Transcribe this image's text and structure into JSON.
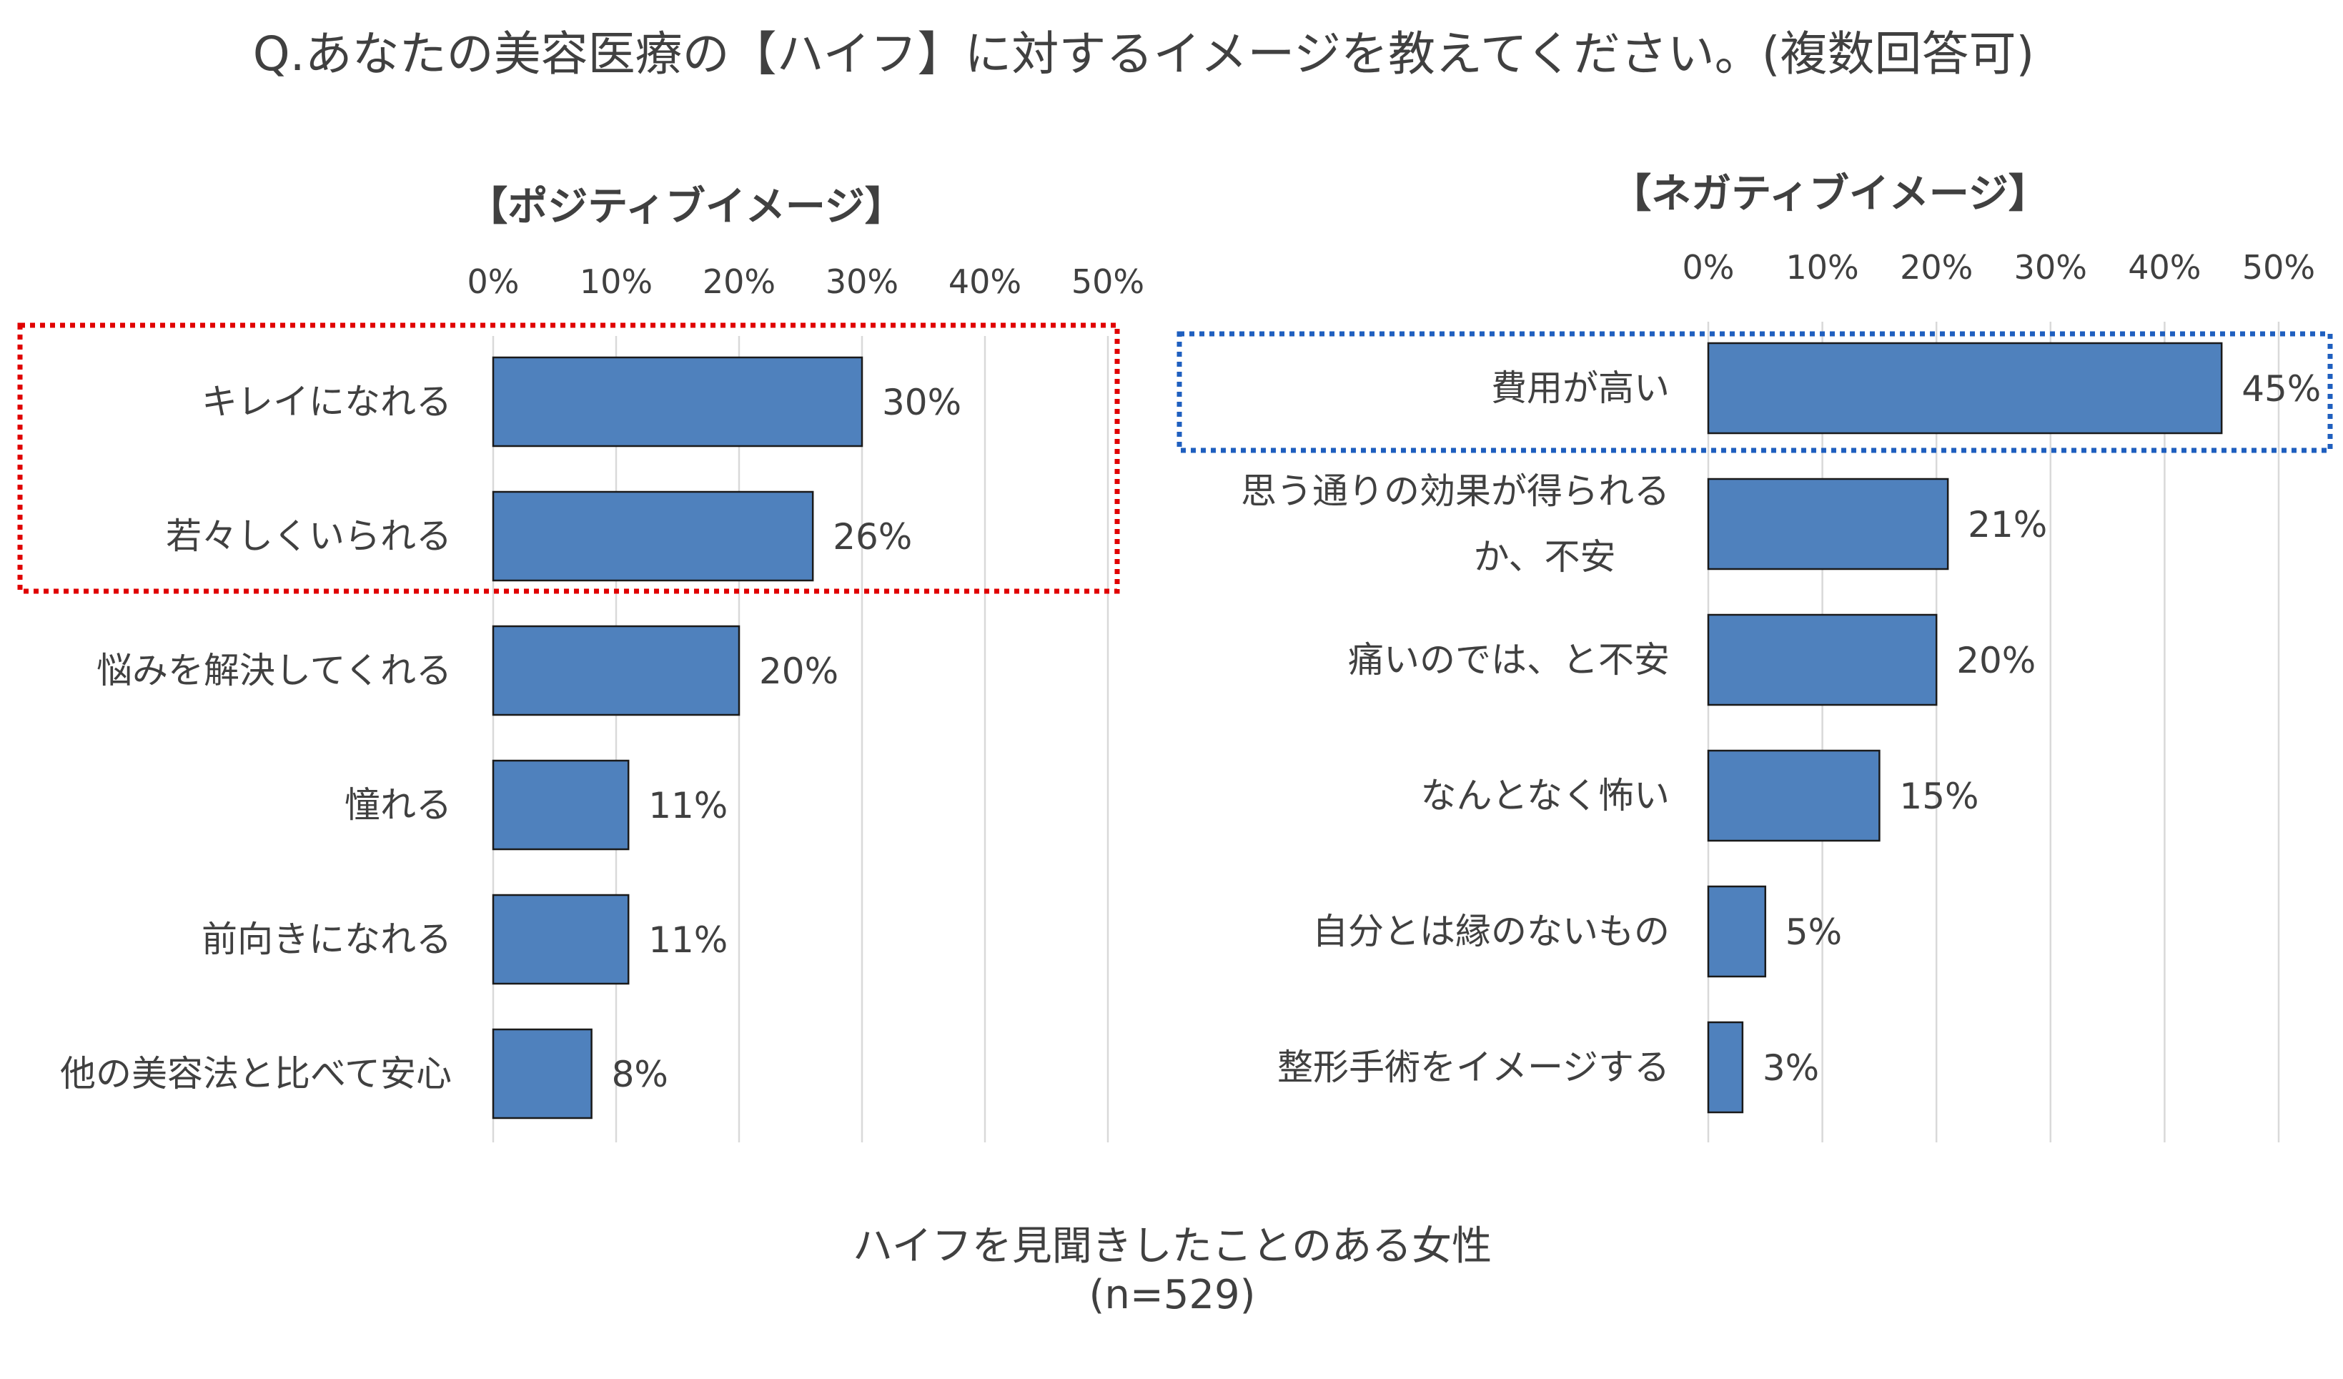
{
  "title": "Q.あなたの美容医療の【ハイフ】に対するイメージを教えてください。(複数回答可)",
  "footer": {
    "line1": "ハイフを見聞きしたことのある女性",
    "line2": "(n=529)"
  },
  "colors": {
    "bar": "#4f81bd",
    "positive_highlight": "#e00000",
    "negative_highlight": "#1f5fbf"
  },
  "chart_data": [
    {
      "type": "bar",
      "orientation": "horizontal",
      "title": "【ポジティブイメージ】",
      "categories": [
        "キレイになれる",
        "若々しくいられる",
        "悩みを解決してくれる",
        "憧れる",
        "前向きになれる",
        "他の美容法と比べて安心"
      ],
      "values": [
        30,
        26,
        20,
        11,
        11,
        8
      ],
      "value_labels": [
        "30%",
        "26%",
        "20%",
        "11%",
        "11%",
        "8%"
      ],
      "xticks": [
        "0%",
        "10%",
        "20%",
        "30%",
        "40%",
        "50%"
      ],
      "xlim": [
        0,
        50
      ],
      "axis_position": "top",
      "grid": true,
      "highlighted_categories": [
        "キレイになれる",
        "若々しくいられる"
      ],
      "highlight_style": "red dotted box"
    },
    {
      "type": "bar",
      "orientation": "horizontal",
      "title": "【ネガティブイメージ】",
      "categories": [
        "費用が高い",
        "思う通りの効果が得られるか、不安",
        "痛いのでは、と不安",
        "なんとなく怖い",
        "自分とは縁のないもの",
        "整形手術をイメージする"
      ],
      "category_lines": [
        [
          "費用が高い"
        ],
        [
          "思う通りの効果が得られる",
          "か、不安"
        ],
        [
          "痛いのでは、と不安"
        ],
        [
          "なんとなく怖い"
        ],
        [
          "自分とは縁のないもの"
        ],
        [
          "整形手術をイメージする"
        ]
      ],
      "values": [
        45,
        21,
        20,
        15,
        5,
        3
      ],
      "value_labels": [
        "45%",
        "21%",
        "20%",
        "15%",
        "5%",
        "3%"
      ],
      "xticks": [
        "0%",
        "10%",
        "20%",
        "30%",
        "40%",
        "50%"
      ],
      "xlim": [
        0,
        50
      ],
      "axis_position": "top",
      "grid": true,
      "highlighted_categories": [
        "費用が高い"
      ],
      "highlight_style": "blue dotted box"
    }
  ]
}
